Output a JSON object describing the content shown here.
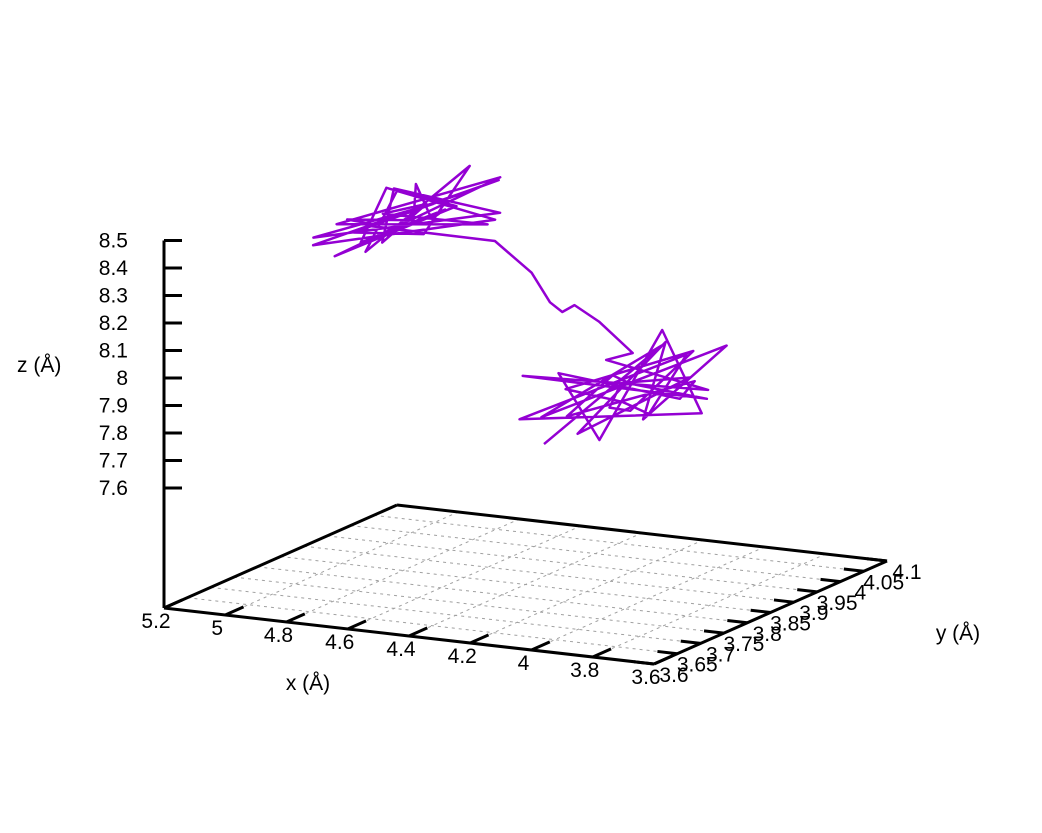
{
  "chart_data": {
    "type": "line",
    "title": "",
    "xlabel": "x (Å)",
    "ylabel": "y (Å)",
    "zlabel": "z (Å)",
    "x_ticks": [
      "5.2",
      "5",
      "4.8",
      "4.6",
      "4.4",
      "4.2",
      "4",
      "3.8",
      "3.6"
    ],
    "y_ticks": [
      "3.6",
      "3.65",
      "3.7",
      "3.75",
      "3.8",
      "3.85",
      "3.9",
      "3.95",
      "4",
      "4.05",
      "4.1"
    ],
    "z_ticks": [
      "8.5",
      "8.4",
      "8.3",
      "8.2",
      "8.1",
      "8",
      "7.9",
      "7.8",
      "7.7",
      "7.6"
    ],
    "xlim": [
      3.6,
      5.2
    ],
    "ylim": [
      3.6,
      4.1
    ],
    "zlim": [
      7.6,
      8.5
    ],
    "grid": true,
    "legend": "none",
    "series_color": "#9400d3",
    "series": [
      {
        "points": [
          [
            4.86,
            3.82,
            8.44
          ],
          [
            4.8,
            3.73,
            8.53
          ],
          [
            4.72,
            3.82,
            8.47
          ],
          [
            4.91,
            3.95,
            8.48
          ],
          [
            4.6,
            3.78,
            8.52
          ],
          [
            4.83,
            3.96,
            8.39
          ],
          [
            4.71,
            3.7,
            8.48
          ],
          [
            4.9,
            3.88,
            8.52
          ],
          [
            4.56,
            3.89,
            8.44
          ],
          [
            4.85,
            3.69,
            8.46
          ],
          [
            4.67,
            3.97,
            8.51
          ],
          [
            4.9,
            3.81,
            8.41
          ],
          [
            4.58,
            3.75,
            8.49
          ],
          [
            4.78,
            3.98,
            8.54
          ],
          [
            4.74,
            3.73,
            8.42
          ],
          [
            4.94,
            3.93,
            8.47
          ],
          [
            4.61,
            3.84,
            8.52
          ],
          [
            4.81,
            3.71,
            8.41
          ],
          [
            4.65,
            3.96,
            8.53
          ],
          [
            4.88,
            3.76,
            8.48
          ],
          [
            4.6,
            3.9,
            8.41
          ],
          [
            4.79,
            3.8,
            8.5
          ],
          [
            4.83,
            3.92,
            8.44
          ],
          [
            4.67,
            3.72,
            8.47
          ],
          [
            4.86,
            3.87,
            8.53
          ],
          [
            4.62,
            3.94,
            8.42
          ],
          [
            4.91,
            3.73,
            8.45
          ],
          [
            4.7,
            3.85,
            8.51
          ],
          [
            4.84,
            3.8,
            8.45
          ],
          [
            4.5,
            3.85,
            8.4
          ],
          [
            4.38,
            3.85,
            8.3
          ],
          [
            4.32,
            3.85,
            8.2
          ],
          [
            4.28,
            3.85,
            8.17
          ],
          [
            4.24,
            3.85,
            8.2
          ],
          [
            4.16,
            3.85,
            8.15
          ],
          [
            4.05,
            3.85,
            8.05
          ],
          [
            4.03,
            3.78,
            8.08
          ],
          [
            3.88,
            3.9,
            7.9
          ],
          [
            4.12,
            3.66,
            8.1
          ],
          [
            3.96,
            3.95,
            7.82
          ],
          [
            3.86,
            3.72,
            8.06
          ],
          [
            4.1,
            3.84,
            7.97
          ],
          [
            3.93,
            3.63,
            8.0
          ],
          [
            4.03,
            3.97,
            7.86
          ],
          [
            3.82,
            3.8,
            7.95
          ],
          [
            4.14,
            3.75,
            8.04
          ],
          [
            3.9,
            3.68,
            7.88
          ],
          [
            4.06,
            3.92,
            8.08
          ],
          [
            3.84,
            3.86,
            7.85
          ],
          [
            4.1,
            3.64,
            7.96
          ],
          [
            3.95,
            3.9,
            8.02
          ],
          [
            3.86,
            3.76,
            7.92
          ],
          [
            4.13,
            3.88,
            7.84
          ],
          [
            3.98,
            3.66,
            8.07
          ],
          [
            4.05,
            3.98,
            7.96
          ],
          [
            3.83,
            3.7,
            7.98
          ],
          [
            4.08,
            3.82,
            7.87
          ],
          [
            3.92,
            3.74,
            8.04
          ],
          [
            4.0,
            3.94,
            7.9
          ],
          [
            3.88,
            3.62,
            7.95
          ],
          [
            4.11,
            3.96,
            8.0
          ],
          [
            3.94,
            3.8,
            7.86
          ],
          [
            3.85,
            3.92,
            8.05
          ],
          [
            4.12,
            3.7,
            7.92
          ],
          [
            3.97,
            3.86,
            8.08
          ],
          [
            4.02,
            3.64,
            7.88
          ]
        ]
      }
    ]
  }
}
